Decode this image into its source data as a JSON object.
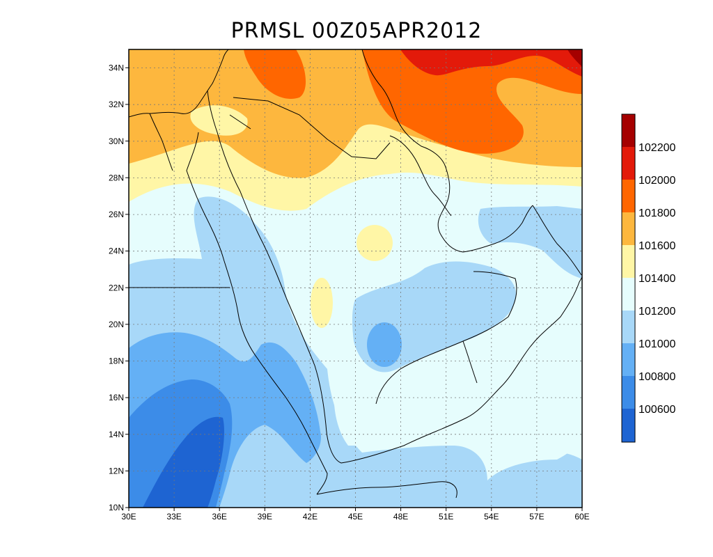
{
  "title": "PRMSL 00Z05APR2012",
  "map": {
    "lon_ticks": [
      "30E",
      "33E",
      "36E",
      "39E",
      "42E",
      "45E",
      "48E",
      "51E",
      "54E",
      "57E",
      "60E"
    ],
    "lat_ticks": [
      "10N",
      "12N",
      "14N",
      "16N",
      "18N",
      "20N",
      "22N",
      "24N",
      "26N",
      "28N",
      "30N",
      "32N",
      "34N"
    ],
    "grid": true
  },
  "colorbar": {
    "labels": [
      "102200",
      "102000",
      "101800",
      "101600",
      "101400",
      "101200",
      "101000",
      "100800",
      "100600"
    ],
    "colors": [
      "#a50000",
      "#e31a0a",
      "#ff6600",
      "#fdb73e",
      "#fff6a6",
      "#e6fdfd",
      "#a8d8f8",
      "#64b0f5",
      "#3c8ce8",
      "#1e64d2"
    ]
  }
}
